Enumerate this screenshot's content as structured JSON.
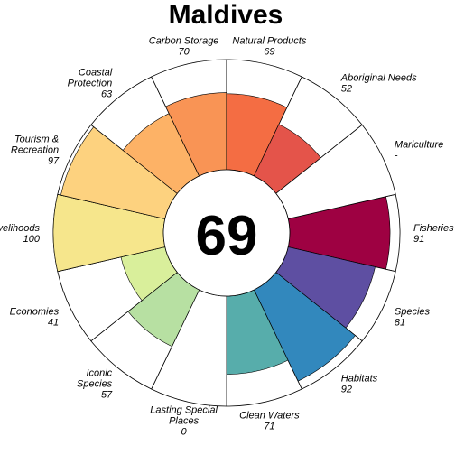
{
  "chart_data": {
    "type": "radial_bar",
    "title": "Maldives",
    "center_value": "69",
    "max": 100,
    "petals": [
      {
        "name": "Fisheries",
        "label_lines": [
          "Fisheries"
        ],
        "value_text": "91",
        "value": 91,
        "color": "#9e0142"
      },
      {
        "name": "Species",
        "label_lines": [
          "Species"
        ],
        "value_text": "81",
        "value": 81,
        "color": "#5e4fa2"
      },
      {
        "name": "Habitats",
        "label_lines": [
          "Habitats"
        ],
        "value_text": "92",
        "value": 92,
        "color": "#3288bd"
      },
      {
        "name": "Clean Waters",
        "label_lines": [
          "Clean Waters"
        ],
        "value_text": "71",
        "value": 71,
        "color": "#57adab"
      },
      {
        "name": "Lasting Special Places",
        "label_lines": [
          "Lasting Special",
          "Places"
        ],
        "value_text": "0",
        "value": 0,
        "color": "#7fcba4"
      },
      {
        "name": "Iconic Species",
        "label_lines": [
          "Iconic",
          "Species"
        ],
        "value_text": "57",
        "value": 57,
        "color": "#b7e0a2"
      },
      {
        "name": "Economies",
        "label_lines": [
          "Economies"
        ],
        "value_text": "41",
        "value": 41,
        "color": "#d9ef9b"
      },
      {
        "name": "Livelihoods",
        "label_lines": [
          "Livelihoods"
        ],
        "value_text": "100",
        "value": 100,
        "color": "#f6e68c"
      },
      {
        "name": "Tourism & Recreation",
        "label_lines": [
          "Tourism &",
          "Recreation"
        ],
        "value_text": "97",
        "value": 97,
        "color": "#fdd27f"
      },
      {
        "name": "Coastal Protection",
        "label_lines": [
          "Coastal",
          "Protection"
        ],
        "value_text": "63",
        "value": 63,
        "color": "#fdb266"
      },
      {
        "name": "Carbon Storage",
        "label_lines": [
          "Carbon Storage"
        ],
        "value_text": "70",
        "value": 70,
        "color": "#f99455"
      },
      {
        "name": "Natural Products",
        "label_lines": [
          "Natural Products"
        ],
        "value_text": "69",
        "value": 69,
        "color": "#f46d43"
      },
      {
        "name": "Aboriginal Needs",
        "label_lines": [
          "Aboriginal Needs"
        ],
        "value_text": "52",
        "value": 52,
        "color": "#e4544a"
      },
      {
        "name": "Mariculture",
        "label_lines": [
          "Mariculture"
        ],
        "value_text": "-",
        "value": null,
        "color": "#cccccc"
      }
    ]
  }
}
